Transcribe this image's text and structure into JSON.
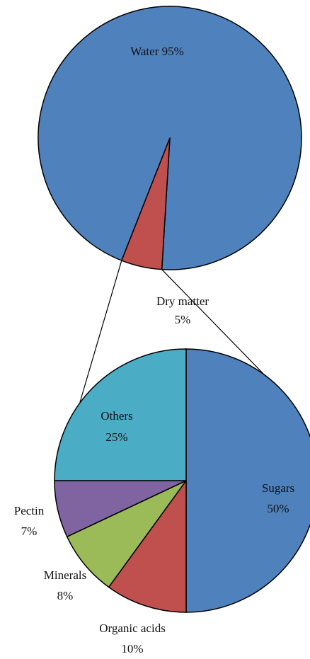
{
  "chart_data": [
    {
      "type": "pie",
      "categories": [
        "Water",
        "Dry matter"
      ],
      "values": [
        95,
        5
      ],
      "labels": [
        {
          "name": "Water",
          "value": "95%"
        },
        {
          "name": "Dry matter",
          "value": "5%"
        }
      ],
      "colors": [
        "#4F81BD",
        "#C0504D"
      ]
    },
    {
      "type": "pie",
      "categories": [
        "Sugars",
        "Organic acids",
        "Minerals",
        "Pectin",
        "Others"
      ],
      "values": [
        50,
        10,
        8,
        7,
        25
      ],
      "labels": [
        {
          "name": "Sugars",
          "value": "50%"
        },
        {
          "name": "Organic acids",
          "value": "10%"
        },
        {
          "name": "Minerals",
          "value": "8%"
        },
        {
          "name": "Pectin",
          "value": "7%"
        },
        {
          "name": "Others",
          "value": "25%"
        }
      ],
      "colors": [
        "#4F81BD",
        "#C0504D",
        "#9BBB59",
        "#8064A2",
        "#4BACC6"
      ]
    }
  ]
}
